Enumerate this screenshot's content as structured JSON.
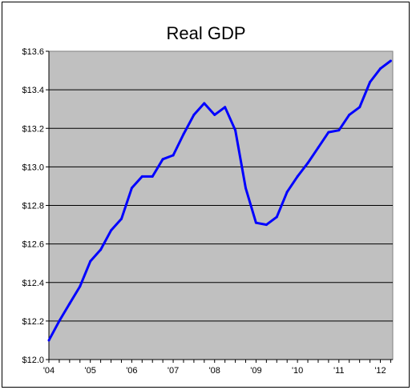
{
  "chart_data": {
    "type": "line",
    "title": "Real GDP",
    "xlabel": "",
    "ylabel": "",
    "ylim": [
      12.0,
      13.6
    ],
    "xlim": [
      2004.0,
      2012.3
    ],
    "yticks": [
      {
        "value": 12.0,
        "label": "$12.0"
      },
      {
        "value": 12.2,
        "label": "$12.2"
      },
      {
        "value": 12.4,
        "label": "$12.4"
      },
      {
        "value": 12.6,
        "label": "$12.6"
      },
      {
        "value": 12.8,
        "label": "$12.8"
      },
      {
        "value": 13.0,
        "label": "$13.0"
      },
      {
        "value": 13.2,
        "label": "$13.2"
      },
      {
        "value": 13.4,
        "label": "$13.4"
      },
      {
        "value": 13.6,
        "label": "$13.6"
      }
    ],
    "xticks": [
      {
        "value": 2004,
        "label": "'04"
      },
      {
        "value": 2005,
        "label": "'05"
      },
      {
        "value": 2006,
        "label": "'06"
      },
      {
        "value": 2007,
        "label": "'07"
      },
      {
        "value": 2008,
        "label": "'08"
      },
      {
        "value": 2009,
        "label": "'09"
      },
      {
        "value": 2010,
        "label": "'10"
      },
      {
        "value": 2011,
        "label": "'11"
      },
      {
        "value": 2012,
        "label": "'12"
      }
    ],
    "grid": "horizontal",
    "plot_background": "#c0c0c0",
    "series": [
      {
        "color": "#0000ff",
        "x": [
          2004.0,
          2004.25,
          2004.5,
          2004.75,
          2005.0,
          2005.25,
          2005.5,
          2005.75,
          2006.0,
          2006.25,
          2006.5,
          2006.75,
          2007.0,
          2007.25,
          2007.5,
          2007.75,
          2008.0,
          2008.25,
          2008.5,
          2008.75,
          2009.0,
          2009.25,
          2009.5,
          2009.75,
          2010.0,
          2010.25,
          2010.5,
          2010.75,
          2011.0,
          2011.25,
          2011.5,
          2011.75,
          2012.0,
          2012.25
        ],
        "y": [
          12.1,
          12.2,
          12.29,
          12.38,
          12.51,
          12.57,
          12.67,
          12.73,
          12.89,
          12.95,
          12.95,
          13.04,
          13.06,
          13.17,
          13.27,
          13.33,
          13.27,
          13.31,
          13.19,
          12.89,
          12.71,
          12.7,
          12.74,
          12.87,
          12.95,
          13.02,
          13.1,
          13.18,
          13.19,
          13.27,
          13.31,
          13.44,
          13.51,
          13.55
        ]
      }
    ]
  }
}
